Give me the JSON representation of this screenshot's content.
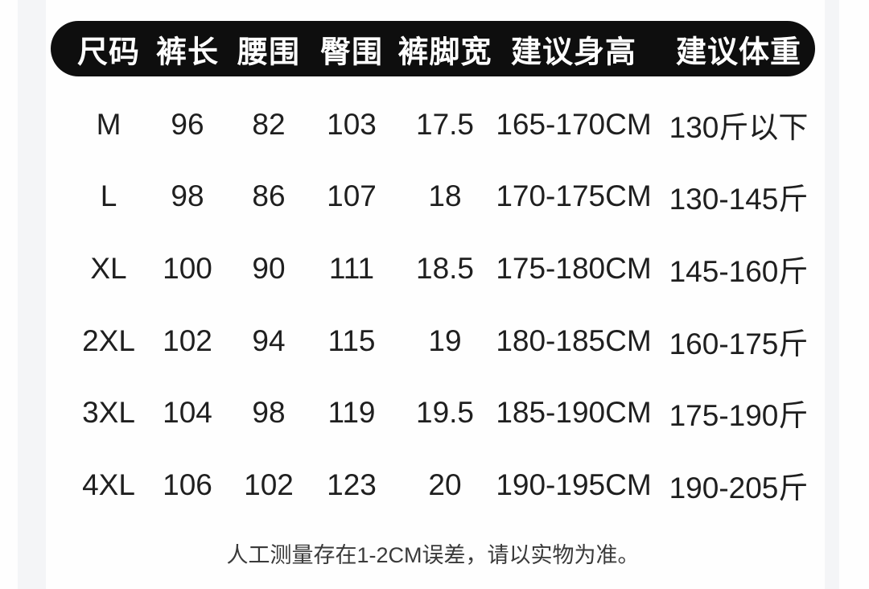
{
  "table": {
    "headers": [
      "尺码",
      "裤长",
      "腰围",
      "臀围",
      "裤脚宽",
      "建议身高",
      "建议体重"
    ],
    "rows": [
      [
        "M",
        "96",
        "82",
        "103",
        "17.5",
        "165-170CM",
        "130斤以下"
      ],
      [
        "L",
        "98",
        "86",
        "107",
        "18",
        "170-175CM",
        "130-145斤"
      ],
      [
        "XL",
        "100",
        "90",
        "111",
        "18.5",
        "175-180CM",
        "145-160斤"
      ],
      [
        "2XL",
        "102",
        "94",
        "115",
        "19",
        "180-185CM",
        "160-175斤"
      ],
      [
        "3XL",
        "104",
        "98",
        "119",
        "19.5",
        "185-190CM",
        "175-190斤"
      ],
      [
        "4XL",
        "106",
        "102",
        "123",
        "20",
        "190-195CM",
        "190-205斤"
      ]
    ]
  },
  "footer": {
    "note": "人工测量存在1-2CM误差，请以实物为准。"
  },
  "colors": {
    "header_bg": "#0e0e0e",
    "header_text": "#ffffff",
    "body_text": "#1f1f1f",
    "note_text": "#3a3a3a",
    "page_bg": "#fefefe",
    "edge_band": "#f4f5f7"
  },
  "chart_data": {
    "type": "table",
    "title": "",
    "columns": [
      "尺码",
      "裤长",
      "腰围",
      "臀围",
      "裤脚宽",
      "建议身高",
      "建议体重"
    ],
    "rows": [
      [
        "M",
        96,
        82,
        103,
        17.5,
        "165-170CM",
        "130斤以下"
      ],
      [
        "L",
        98,
        86,
        107,
        18,
        "170-175CM",
        "130-145斤"
      ],
      [
        "XL",
        100,
        90,
        111,
        18.5,
        "175-180CM",
        "145-160斤"
      ],
      [
        "2XL",
        102,
        94,
        115,
        19,
        "180-185CM",
        "160-175斤"
      ],
      [
        "3XL",
        104,
        98,
        119,
        19.5,
        "185-190CM",
        "175-190斤"
      ],
      [
        "4XL",
        106,
        102,
        123,
        20,
        "190-195CM",
        "190-205斤"
      ]
    ],
    "footnote": "人工测量存在1-2CM误差，请以实物为准。"
  }
}
